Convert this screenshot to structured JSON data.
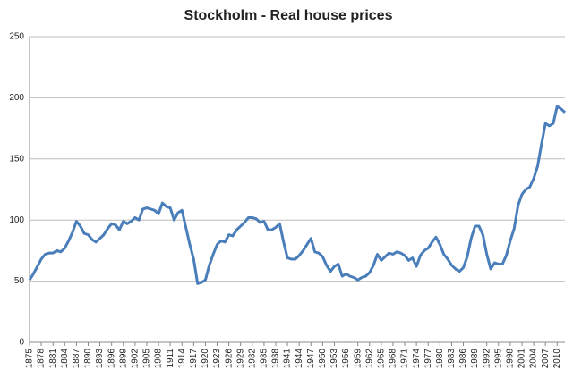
{
  "chart_data": {
    "type": "line",
    "title": "Stockholm - Real house prices",
    "x": [
      1875,
      1876,
      1877,
      1878,
      1879,
      1880,
      1881,
      1882,
      1883,
      1884,
      1885,
      1886,
      1887,
      1888,
      1889,
      1890,
      1891,
      1892,
      1893,
      1894,
      1895,
      1896,
      1897,
      1898,
      1899,
      1900,
      1901,
      1902,
      1903,
      1904,
      1905,
      1906,
      1907,
      1908,
      1909,
      1910,
      1911,
      1912,
      1913,
      1914,
      1915,
      1916,
      1917,
      1918,
      1919,
      1920,
      1921,
      1922,
      1923,
      1924,
      1925,
      1926,
      1927,
      1928,
      1929,
      1930,
      1931,
      1932,
      1933,
      1934,
      1935,
      1936,
      1937,
      1938,
      1939,
      1940,
      1941,
      1942,
      1943,
      1944,
      1945,
      1946,
      1947,
      1948,
      1949,
      1950,
      1951,
      1952,
      1953,
      1954,
      1955,
      1956,
      1957,
      1958,
      1959,
      1960,
      1961,
      1962,
      1963,
      1964,
      1965,
      1966,
      1967,
      1968,
      1969,
      1970,
      1971,
      1972,
      1973,
      1974,
      1975,
      1976,
      1977,
      1978,
      1979,
      1980,
      1981,
      1982,
      1983,
      1984,
      1985,
      1986,
      1987,
      1988,
      1989,
      1990,
      1991,
      1992,
      1993,
      1994,
      1995,
      1996,
      1997,
      1998,
      1999,
      2000,
      2001,
      2002,
      2003,
      2004,
      2005,
      2006,
      2007,
      2008,
      2009,
      2010,
      2011,
      2012
    ],
    "values": [
      51,
      56,
      62,
      68,
      72,
      73,
      73,
      75,
      74,
      77,
      83,
      90,
      99,
      95,
      89,
      88,
      84,
      82,
      85,
      88,
      93,
      97,
      96,
      92,
      99,
      97,
      99,
      102,
      100,
      109,
      110,
      109,
      108,
      105,
      114,
      111,
      110,
      100,
      106,
      108,
      94,
      80,
      68,
      48,
      49,
      51,
      63,
      72,
      80,
      83,
      82,
      88,
      87,
      92,
      95,
      98,
      102,
      102,
      101,
      98,
      99,
      92,
      92,
      94,
      97,
      82,
      69,
      68,
      68,
      71,
      75,
      80,
      85,
      74,
      73,
      70,
      63,
      58,
      62,
      64,
      54,
      56,
      54,
      53,
      51,
      53,
      54,
      57,
      63,
      72,
      67,
      70,
      73,
      72,
      74,
      73,
      71,
      67,
      69,
      62,
      71,
      75,
      77,
      82,
      86,
      80,
      72,
      68,
      63,
      60,
      58,
      61,
      70,
      85,
      95,
      95,
      88,
      72,
      60,
      65,
      64,
      64,
      71,
      83,
      93,
      112,
      121,
      125,
      127,
      134,
      144,
      162,
      179,
      177,
      179,
      193,
      191,
      188
    ],
    "color": "#4a7ebb",
    "xlim": [
      1875,
      2012
    ],
    "xticks": [
      1875,
      1878,
      1881,
      1884,
      1887,
      1890,
      1893,
      1896,
      1899,
      1902,
      1905,
      1908,
      1911,
      1914,
      1917,
      1920,
      1923,
      1926,
      1929,
      1932,
      1935,
      1938,
      1941,
      1944,
      1947,
      1950,
      1953,
      1956,
      1959,
      1962,
      1965,
      1968,
      1971,
      1974,
      1977,
      1980,
      1983,
      1986,
      1989,
      1992,
      1995,
      1998,
      2001,
      2004,
      2007,
      2010
    ],
    "ylim": [
      0,
      250
    ],
    "yticks": [
      0,
      50,
      100,
      150,
      200,
      250
    ],
    "grid": true
  }
}
